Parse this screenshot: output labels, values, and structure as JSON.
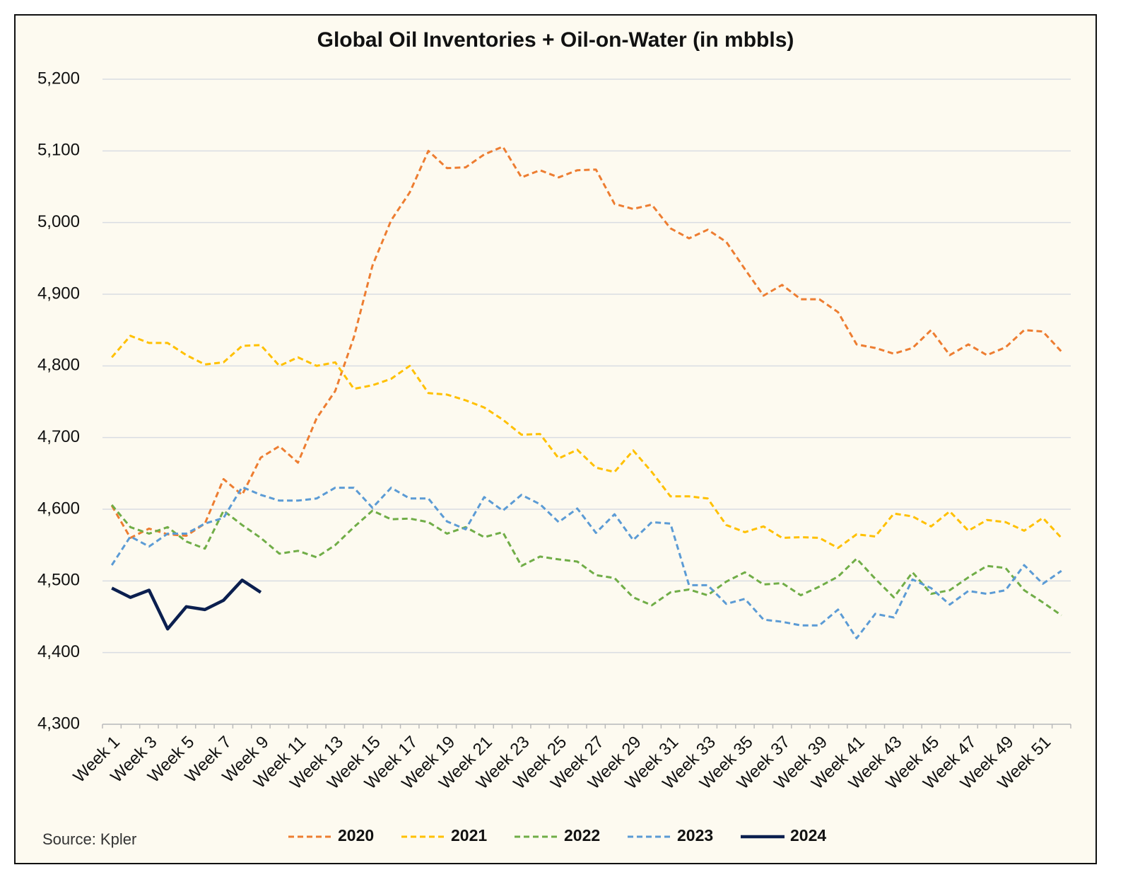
{
  "chart_data": {
    "type": "line",
    "title": "Global Oil Inventories + Oil-on-Water (in mbbls)",
    "source": "Source: Kpler",
    "categories": [
      "Week 1",
      null,
      "Week 3",
      null,
      "Week 5",
      null,
      "Week 7",
      null,
      "Week 9",
      null,
      "Week 11",
      null,
      "Week 13",
      null,
      "Week 15",
      null,
      "Week 17",
      null,
      "Week 19",
      null,
      "Week 21",
      null,
      "Week 23",
      null,
      "Week 25",
      null,
      "Week 27",
      null,
      "Week 29",
      null,
      "Week 31",
      null,
      "Week 33",
      null,
      "Week 35",
      null,
      "Week 37",
      null,
      "Week 39",
      null,
      "Week 41",
      null,
      "Week 43",
      null,
      "Week 45",
      null,
      "Week 47",
      null,
      "Week 49",
      null,
      "Week 51",
      null
    ],
    "ylim": [
      4300,
      5200
    ],
    "yticks": [
      {
        "value": 4300,
        "label": "4,300"
      },
      {
        "value": 4400,
        "label": "4,400"
      },
      {
        "value": 4500,
        "label": "4,500"
      },
      {
        "value": 4600,
        "label": "4,600"
      },
      {
        "value": 4700,
        "label": "4,700"
      },
      {
        "value": 4800,
        "label": "4,800"
      },
      {
        "value": 4900,
        "label": "4,900"
      },
      {
        "value": 5000,
        "label": "5,000"
      },
      {
        "value": 5100,
        "label": "5,100"
      },
      {
        "value": 5200,
        "label": "5,200"
      }
    ],
    "grid": true,
    "legend": "bottom",
    "series": [
      {
        "name": "2020",
        "color": "#ed7d31",
        "dashed": true,
        "values": [
          4605,
          4560,
          4573,
          4565,
          4563,
          4580,
          4642,
          4620,
          4672,
          4688,
          4665,
          4727,
          4765,
          4840,
          4940,
          5003,
          5042,
          5100,
          5076,
          5077,
          5095,
          5106,
          5063,
          5073,
          5063,
          5073,
          5074,
          5026,
          5019,
          5025,
          4992,
          4978,
          4990,
          4973,
          4935,
          4898,
          4913,
          4893,
          4893,
          4875,
          4830,
          4825,
          4817,
          4825,
          4850,
          4815,
          4830,
          4815,
          4826,
          4850,
          4848,
          4820
        ]
      },
      {
        "name": "2021",
        "color": "#ffc000",
        "dashed": true,
        "values": [
          4812,
          4842,
          4832,
          4832,
          4815,
          4802,
          4805,
          4828,
          4829,
          4800,
          4812,
          4800,
          4805,
          4768,
          4773,
          4782,
          4800,
          4762,
          4760,
          4752,
          4742,
          4725,
          4704,
          4705,
          4671,
          4683,
          4658,
          4652,
          4682,
          4652,
          4618,
          4618,
          4615,
          4578,
          4568,
          4576,
          4560,
          4561,
          4560,
          4546,
          4565,
          4562,
          4594,
          4590,
          4576,
          4597,
          4570,
          4585,
          4582,
          4570,
          4588,
          4560
        ]
      },
      {
        "name": "2022",
        "color": "#70ad47",
        "dashed": true,
        "values": [
          4606,
          4575,
          4566,
          4575,
          4555,
          4545,
          4598,
          4578,
          4560,
          4538,
          4542,
          4533,
          4550,
          4575,
          4598,
          4586,
          4587,
          4582,
          4566,
          4575,
          4561,
          4568,
          4521,
          4534,
          4530,
          4527,
          4508,
          4504,
          4477,
          4466,
          4484,
          4488,
          4480,
          4499,
          4512,
          4495,
          4497,
          4480,
          4492,
          4506,
          4531,
          4503,
          4477,
          4512,
          4482,
          4487,
          4505,
          4521,
          4518,
          4487,
          4470,
          4452
        ]
      },
      {
        "name": "2023",
        "color": "#5b9bd5",
        "dashed": true,
        "values": [
          4522,
          4562,
          4548,
          4566,
          4566,
          4580,
          4588,
          4631,
          4620,
          4612,
          4612,
          4615,
          4630,
          4630,
          4602,
          4630,
          4615,
          4615,
          4583,
          4572,
          4617,
          4598,
          4620,
          4607,
          4582,
          4601,
          4567,
          4593,
          4557,
          4582,
          4580,
          4494,
          4494,
          4468,
          4475,
          4446,
          4443,
          4438,
          4438,
          4460,
          4420,
          4454,
          4449,
          4502,
          4490,
          4467,
          4486,
          4482,
          4487,
          4522,
          4496,
          4514
        ]
      },
      {
        "name": "2024",
        "color": "#0b1f4f",
        "dashed": false,
        "values": [
          4490,
          4477,
          4487,
          4433,
          4464,
          4460,
          4473,
          4501,
          4484,
          null,
          null,
          null,
          null,
          null,
          null,
          null,
          null,
          null,
          null,
          null,
          null,
          null,
          null,
          null,
          null,
          null,
          null,
          null,
          null,
          null,
          null,
          null,
          null,
          null,
          null,
          null,
          null,
          null,
          null,
          null,
          null,
          null,
          null,
          null,
          null,
          null,
          null,
          null,
          null,
          null,
          null,
          null
        ]
      }
    ]
  }
}
